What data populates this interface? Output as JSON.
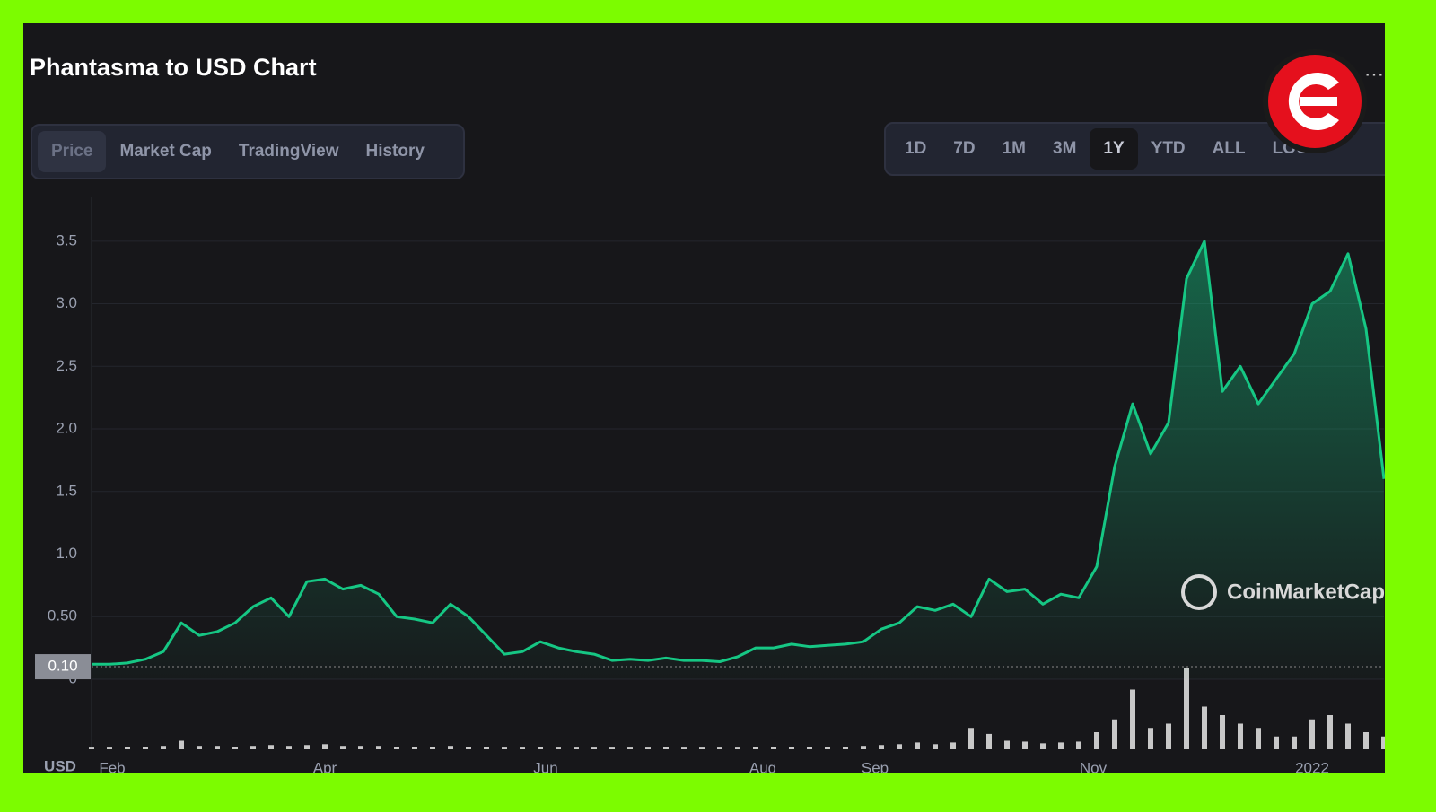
{
  "header": {
    "title": "Phantasma to USD Chart"
  },
  "tabs": [
    {
      "label": "Price",
      "active": true
    },
    {
      "label": "Market Cap",
      "active": false
    },
    {
      "label": "TradingView",
      "active": false
    },
    {
      "label": "History",
      "active": false
    }
  ],
  "ranges": [
    {
      "label": "1D",
      "active": false
    },
    {
      "label": "7D",
      "active": false
    },
    {
      "label": "1M",
      "active": false
    },
    {
      "label": "3M",
      "active": false
    },
    {
      "label": "1Y",
      "active": true
    },
    {
      "label": "YTD",
      "active": false
    },
    {
      "label": "ALL",
      "active": false
    },
    {
      "label": "LOG",
      "active": false
    }
  ],
  "chart_data": {
    "type": "line",
    "color": "#16c784",
    "y_unit": "USD",
    "watermark": "CoinMarketCap",
    "values": [
      0.12,
      0.12,
      0.13,
      0.16,
      0.22,
      0.45,
      0.35,
      0.38,
      0.45,
      0.58,
      0.65,
      0.5,
      0.78,
      0.8,
      0.72,
      0.75,
      0.68,
      0.5,
      0.48,
      0.45,
      0.6,
      0.5,
      0.35,
      0.2,
      0.22,
      0.3,
      0.25,
      0.22,
      0.2,
      0.15,
      0.16,
      0.15,
      0.17,
      0.15,
      0.15,
      0.14,
      0.18,
      0.25,
      0.25,
      0.28,
      0.26,
      0.27,
      0.28,
      0.3,
      0.4,
      0.45,
      0.58,
      0.55,
      0.6,
      0.5,
      0.8,
      0.7,
      0.72,
      0.6,
      0.68,
      0.65,
      0.9,
      1.7,
      2.2,
      1.8,
      2.05,
      3.2,
      3.5,
      2.3,
      2.5,
      2.2,
      2.4,
      2.6,
      3.0,
      3.1,
      3.4,
      2.8,
      1.6
    ],
    "volume": [
      2,
      2,
      3,
      3,
      4,
      10,
      4,
      4,
      3,
      4,
      5,
      4,
      5,
      6,
      4,
      4,
      4,
      3,
      3,
      3,
      4,
      3,
      3,
      2,
      2,
      3,
      2,
      2,
      2,
      2,
      2,
      2,
      3,
      2,
      2,
      2,
      2,
      3,
      3,
      3,
      3,
      3,
      3,
      4,
      5,
      6,
      8,
      6,
      8,
      25,
      18,
      10,
      9,
      7,
      8,
      9,
      20,
      35,
      70,
      25,
      30,
      95,
      50,
      40,
      30,
      25,
      15,
      15,
      35,
      40,
      30,
      20,
      15
    ],
    "volume_lim": [
      0,
      100
    ],
    "xlim": [
      0,
      72
    ],
    "xticks": [
      {
        "value": 1.15,
        "label": "Feb"
      },
      {
        "value": 13,
        "label": "Apr"
      },
      {
        "value": 25.3,
        "label": "Jun"
      },
      {
        "value": 37.4,
        "label": "Aug"
      },
      {
        "value": 43.65,
        "label": "Sep"
      },
      {
        "value": 55.8,
        "label": "Nov"
      },
      {
        "value": 68,
        "label": "2022"
      }
    ],
    "ylim": [
      0,
      3.85
    ],
    "yticks": [
      0,
      {
        "value": 0.5,
        "label": "0.50"
      },
      {
        "value": 1,
        "label": "1.0"
      },
      {
        "value": 1.5,
        "label": "1.5"
      },
      {
        "value": 2,
        "label": "2.0"
      },
      {
        "value": 2.5,
        "label": "2.5"
      },
      {
        "value": 3,
        "label": "3.0"
      },
      {
        "value": 3.5,
        "label": "3.5"
      }
    ],
    "current_price": {
      "value": 0.1,
      "label": "0.10"
    },
    "grid": true
  }
}
